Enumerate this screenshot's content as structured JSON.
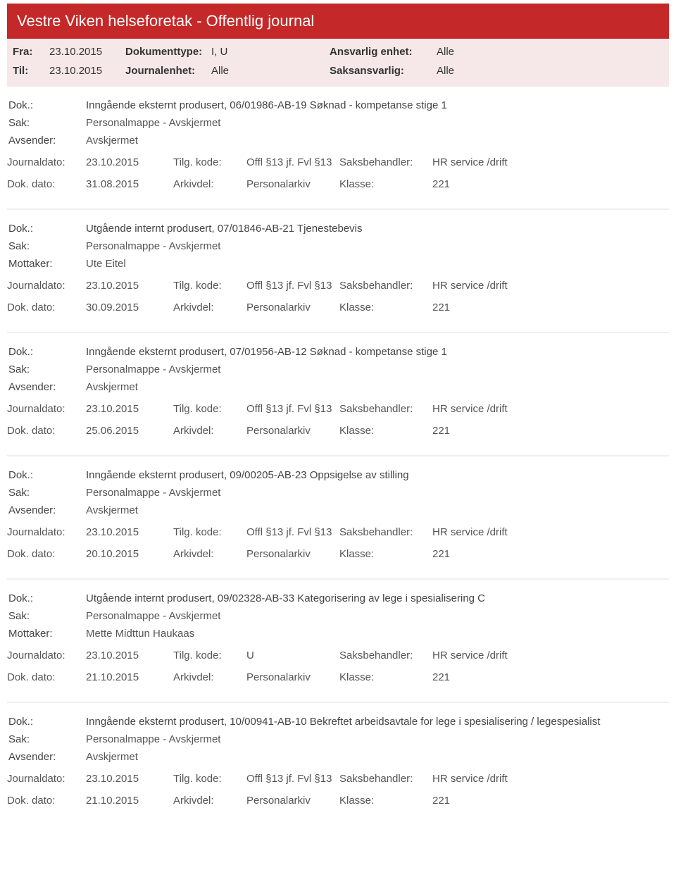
{
  "header": {
    "title": "Vestre Viken helseforetak - Offentlig journal"
  },
  "filters": {
    "fra_label": "Fra:",
    "fra_value": "23.10.2015",
    "til_label": "Til:",
    "til_value": "23.10.2015",
    "doktype_label": "Dokumenttype:",
    "doktype_value": "I, U",
    "journalenhet_label": "Journalenhet:",
    "journalenhet_value": "Alle",
    "ansvarlig_label": "Ansvarlig enhet:",
    "ansvarlig_value": "Alle",
    "saksansvarlig_label": "Saksansvarlig:",
    "saksansvarlig_value": "Alle"
  },
  "labels": {
    "dok": "Dok.:",
    "sak": "Sak:",
    "avsender": "Avsender:",
    "mottaker": "Mottaker:",
    "journaldato": "Journaldato:",
    "dokdato": "Dok. dato:",
    "tilgkode": "Tilg. kode:",
    "arkivdel": "Arkivdel:",
    "saksbehandler": "Saksbehandler:",
    "klasse": "Klasse:"
  },
  "entries": [
    {
      "dok": "Inngående eksternt produsert, 06/01986-AB-19 Søknad - kompetanse stige 1",
      "sak": "Personalmappe - Avskjermet",
      "party_label": "Avsender:",
      "party_value": "Avskjermet",
      "journaldato": "23.10.2015",
      "tilgkode": "Offl §13 jf. Fvl §13",
      "saksbehandler": "HR service /drift",
      "dokdato": "31.08.2015",
      "arkivdel": "Personalarkiv",
      "klasse": "221"
    },
    {
      "dok": "Utgående internt produsert, 07/01846-AB-21 Tjenestebevis",
      "sak": "Personalmappe - Avskjermet",
      "party_label": "Mottaker:",
      "party_value": "Ute Eitel",
      "journaldato": "23.10.2015",
      "tilgkode": "Offl §13 jf. Fvl §13",
      "saksbehandler": "HR service /drift",
      "dokdato": "30.09.2015",
      "arkivdel": "Personalarkiv",
      "klasse": "221"
    },
    {
      "dok": "Inngående eksternt produsert, 07/01956-AB-12 Søknad - kompetanse stige 1",
      "sak": "Personalmappe - Avskjermet",
      "party_label": "Avsender:",
      "party_value": "Avskjermet",
      "journaldato": "23.10.2015",
      "tilgkode": "Offl §13 jf. Fvl §13",
      "saksbehandler": "HR service /drift",
      "dokdato": "25.06.2015",
      "arkivdel": "Personalarkiv",
      "klasse": "221"
    },
    {
      "dok": "Inngående eksternt produsert, 09/00205-AB-23 Oppsigelse av stilling",
      "sak": "Personalmappe - Avskjermet",
      "party_label": "Avsender:",
      "party_value": "Avskjermet",
      "journaldato": "23.10.2015",
      "tilgkode": "Offl §13 jf. Fvl §13",
      "saksbehandler": "HR service /drift",
      "dokdato": "20.10.2015",
      "arkivdel": "Personalarkiv",
      "klasse": "221"
    },
    {
      "dok": "Utgående internt produsert, 09/02328-AB-33 Kategorisering av lege i spesialisering C",
      "sak": "Personalmappe - Avskjermet",
      "party_label": "Mottaker:",
      "party_value": "Mette Midttun Haukaas",
      "journaldato": "23.10.2015",
      "tilgkode": "U",
      "saksbehandler": "HR service /drift",
      "dokdato": "21.10.2015",
      "arkivdel": "Personalarkiv",
      "klasse": "221"
    },
    {
      "dok": "Inngående eksternt produsert, 10/00941-AB-10 Bekreftet arbeidsavtale for lege i spesialisering / legespesialist",
      "sak": "Personalmappe - Avskjermet",
      "party_label": "Avsender:",
      "party_value": "Avskjermet",
      "journaldato": "23.10.2015",
      "tilgkode": "Offl §13 jf. Fvl §13",
      "saksbehandler": "HR service /drift",
      "dokdato": "21.10.2015",
      "arkivdel": "Personalarkiv",
      "klasse": "221"
    }
  ],
  "colors": {
    "header_bg": "#c52828",
    "header_text": "#ffffff",
    "meta_bg": "#f6e8e8",
    "text": "#333333",
    "divider": "#efefef"
  }
}
